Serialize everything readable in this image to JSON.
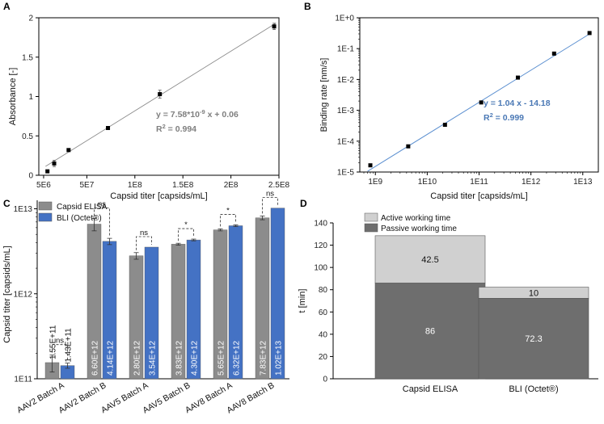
{
  "colors": {
    "gray_bar": "#8c8c8c",
    "blue_bar": "#4472c4",
    "fit_line_a": "#8a8a8a",
    "fit_line_b": "#5b8fd0",
    "eq_a": "#7f7f7f",
    "eq_b": "#4a78b5",
    "active": "#d0d0d0",
    "passive": "#6e6e6e"
  },
  "chart_data": [
    {
      "panel": "A",
      "type": "scatter",
      "xlabel": "Capsid titer [capsids/mL]",
      "ylabel": "Absorbance [-]",
      "xlim": [
        0,
        250000000
      ],
      "ylim": [
        0,
        2
      ],
      "xticks": [
        5000000,
        50000000,
        100000000,
        150000000,
        200000000,
        250000000
      ],
      "xtick_labels": [
        "5E6",
        "5E7",
        "1E8",
        "1.5E8",
        "2E8",
        "2.5E8"
      ],
      "yticks": [
        0,
        0.5,
        1,
        1.5,
        2
      ],
      "ytick_labels": [
        "0",
        "0.5",
        "1",
        "1.5",
        "2"
      ],
      "points": [
        {
          "x": 9000000,
          "y": 0.05,
          "err": 0.01
        },
        {
          "x": 16000000,
          "y": 0.15,
          "err": 0.04
        },
        {
          "x": 31000000,
          "y": 0.32,
          "err": 0.01
        },
        {
          "x": 72000000,
          "y": 0.6,
          "err": 0.01
        },
        {
          "x": 126000000,
          "y": 1.03,
          "err": 0.05
        },
        {
          "x": 245000000,
          "y": 1.89,
          "err": 0.04
        }
      ],
      "fit": {
        "slope": 7.58e-09,
        "intercept": 0.06,
        "x_from": 7000000,
        "x_to": 247000000
      },
      "equation": "y = 7.58*10",
      "equation_exp": "-9",
      "equation_rest": " x + 0.06",
      "r2_label": "R",
      "r2_exp": "2",
      "r2_value": " = 0.994"
    },
    {
      "panel": "B",
      "type": "scatter",
      "xscale": "log",
      "yscale": "log",
      "xlabel": "Capsid titer [capsids/mL]",
      "ylabel": "Binding rate [nm/s]",
      "xlim_log10": [
        8.7,
        13.3
      ],
      "ylim_log10": [
        -5,
        0
      ],
      "xticks_log10": [
        9,
        10,
        11,
        12,
        13
      ],
      "xtick_labels": [
        "1E9",
        "1E10",
        "1E11",
        "1E12",
        "1E13"
      ],
      "yticks_log10": [
        -5,
        -4,
        -3,
        -2,
        -1,
        0
      ],
      "ytick_labels": [
        "1E-5",
        "1E-4",
        "1E-3",
        "1E-2",
        "1E-1",
        "1E+0"
      ],
      "points": [
        {
          "x": 800000000,
          "y": 1.65e-05
        },
        {
          "x": 4300000000,
          "y": 6.8e-05
        },
        {
          "x": 22000000000,
          "y": 0.00034
        },
        {
          "x": 110000000000,
          "y": 0.0018
        },
        {
          "x": 560000000000,
          "y": 0.0115
        },
        {
          "x": 2800000000000,
          "y": 0.069
        },
        {
          "x": 13500000000000,
          "y": 0.32
        }
      ],
      "fit": {
        "slope": 1.04,
        "intercept": -14.18,
        "logx_from": 8.85,
        "logx_to": 13.15
      },
      "equation": "y = 1.04 x - 14.18",
      "r2_label": "R",
      "r2_exp": "2",
      "r2_value": " = 0.999"
    },
    {
      "panel": "C",
      "type": "bar",
      "yscale": "log",
      "ylabel": "Capsid titer [capsids/mL]",
      "ylim_log10": [
        11,
        13.1
      ],
      "yticks_log10": [
        11,
        12,
        13
      ],
      "ytick_labels": [
        "1E11",
        "1E12",
        "1E13"
      ],
      "categories": [
        "AAV2 Batch A",
        "AAV2 Batch B",
        "AAV5 Batch A",
        "AAV5  Batch B",
        "AAV8 Batch A",
        "AAV8 Batch B"
      ],
      "series": [
        {
          "name": "Capsid ELISA",
          "values": [
            155000000000,
            6600000000000,
            2800000000000,
            3830000000000,
            5650000000000,
            7830000000000
          ],
          "errors": [
            35000000000,
            1100000000000,
            250000000000,
            100000000000,
            150000000000,
            400000000000
          ],
          "labels": [
            "1.55E+11",
            "6.60E+12",
            "2.80E+12",
            "3.83E+12",
            "5.65E+12",
            "7.83E+12"
          ]
        },
        {
          "name": "BLI (Octet®)",
          "values": [
            143000000000,
            4140000000000,
            3540000000000,
            4300000000000,
            6320000000000,
            10200000000000
          ],
          "errors": [
            10000000000,
            350000000000,
            0,
            100000000000,
            150000000000,
            0
          ],
          "labels": [
            "1.43E+11",
            "4.14E+12",
            "3.54E+12",
            "4.30E+12",
            "6.32E+12",
            "1.02E+13"
          ]
        }
      ],
      "significance": [
        "ns",
        "ns",
        "ns",
        "*",
        "*",
        "ns"
      ],
      "legend": [
        "Capsid ELISA",
        "BLI (Octet®)"
      ]
    },
    {
      "panel": "D",
      "type": "bar",
      "stacked": true,
      "ylabel": "t [min]",
      "ylim": [
        0,
        140
      ],
      "yticks": [
        0,
        20,
        40,
        60,
        80,
        100,
        120,
        140
      ],
      "categories": [
        "Capsid ELISA",
        "BLI (Octet®)"
      ],
      "series": [
        {
          "name": "Passive working time",
          "values": [
            86,
            72.3
          ],
          "labels": [
            "86",
            "72.3"
          ]
        },
        {
          "name": "Active working time",
          "values": [
            42.5,
            10
          ],
          "labels": [
            "42.5",
            "10"
          ]
        }
      ],
      "legend": [
        "Active working time",
        "Passive working time"
      ]
    }
  ]
}
